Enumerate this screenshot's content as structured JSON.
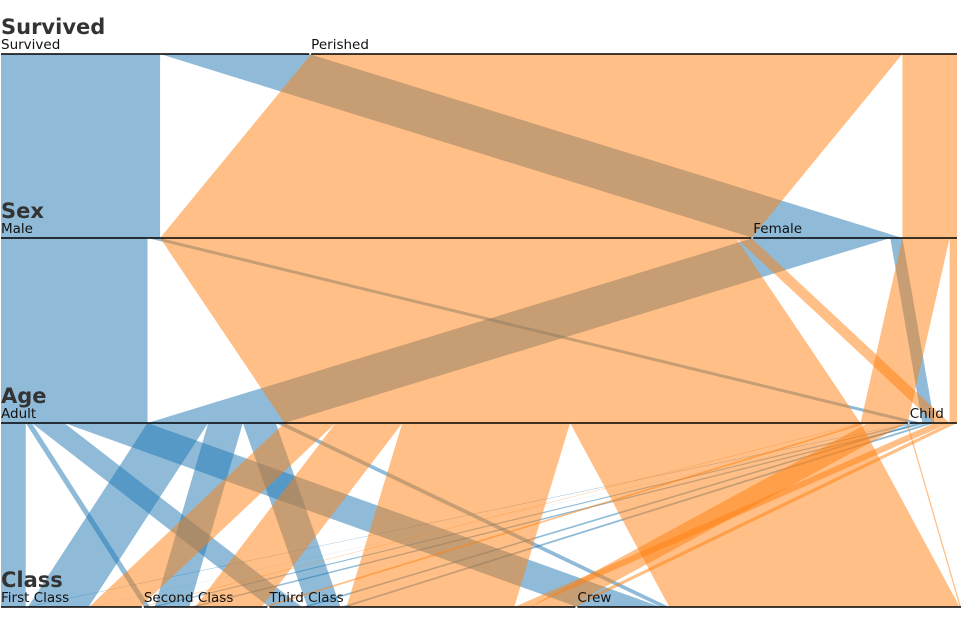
{
  "chart_data": {
    "type": "parallel-sets",
    "dimensions": [
      {
        "name": "Survived",
        "categories": [
          "Survived",
          "Perished"
        ]
      },
      {
        "name": "Sex",
        "categories": [
          "Male",
          "Female"
        ]
      },
      {
        "name": "Age",
        "categories": [
          "Adult",
          "Child"
        ]
      },
      {
        "name": "Class",
        "categories": [
          "First Class",
          "Second Class",
          "Third Class",
          "Crew"
        ]
      }
    ],
    "colors": {
      "Survived": "#1f77b4",
      "Perished": "#ff7f0e"
    },
    "ribbon_opacity": 0.5,
    "ribbon_color_by": "Survived",
    "counts": [
      {
        "Survived": "Survived",
        "Sex": "Male",
        "Age": "Adult",
        "Class": "First Class",
        "count": 57
      },
      {
        "Survived": "Survived",
        "Sex": "Male",
        "Age": "Adult",
        "Class": "Second Class",
        "count": 14
      },
      {
        "Survived": "Survived",
        "Sex": "Male",
        "Age": "Adult",
        "Class": "Third Class",
        "count": 75
      },
      {
        "Survived": "Survived",
        "Sex": "Male",
        "Age": "Adult",
        "Class": "Crew",
        "count": 192
      },
      {
        "Survived": "Survived",
        "Sex": "Male",
        "Age": "Child",
        "Class": "First Class",
        "count": 5
      },
      {
        "Survived": "Survived",
        "Sex": "Male",
        "Age": "Child",
        "Class": "Second Class",
        "count": 11
      },
      {
        "Survived": "Survived",
        "Sex": "Male",
        "Age": "Child",
        "Class": "Third Class",
        "count": 13
      },
      {
        "Survived": "Survived",
        "Sex": "Male",
        "Age": "Child",
        "Class": "Crew",
        "count": 0
      },
      {
        "Survived": "Survived",
        "Sex": "Female",
        "Age": "Adult",
        "Class": "First Class",
        "count": 140
      },
      {
        "Survived": "Survived",
        "Sex": "Female",
        "Age": "Adult",
        "Class": "Second Class",
        "count": 80
      },
      {
        "Survived": "Survived",
        "Sex": "Female",
        "Age": "Adult",
        "Class": "Third Class",
        "count": 76
      },
      {
        "Survived": "Survived",
        "Sex": "Female",
        "Age": "Adult",
        "Class": "Crew",
        "count": 20
      },
      {
        "Survived": "Survived",
        "Sex": "Female",
        "Age": "Child",
        "Class": "First Class",
        "count": 1
      },
      {
        "Survived": "Survived",
        "Sex": "Female",
        "Age": "Child",
        "Class": "Second Class",
        "count": 13
      },
      {
        "Survived": "Survived",
        "Sex": "Female",
        "Age": "Child",
        "Class": "Third Class",
        "count": 14
      },
      {
        "Survived": "Survived",
        "Sex": "Female",
        "Age": "Child",
        "Class": "Crew",
        "count": 0
      },
      {
        "Survived": "Perished",
        "Sex": "Male",
        "Age": "Adult",
        "Class": "First Class",
        "count": 118
      },
      {
        "Survived": "Perished",
        "Sex": "Male",
        "Age": "Adult",
        "Class": "Second Class",
        "count": 154
      },
      {
        "Survived": "Perished",
        "Sex": "Male",
        "Age": "Adult",
        "Class": "Third Class",
        "count": 387
      },
      {
        "Survived": "Perished",
        "Sex": "Male",
        "Age": "Adult",
        "Class": "Crew",
        "count": 670
      },
      {
        "Survived": "Perished",
        "Sex": "Male",
        "Age": "Child",
        "Class": "First Class",
        "count": 0
      },
      {
        "Survived": "Perished",
        "Sex": "Male",
        "Age": "Child",
        "Class": "Second Class",
        "count": 0
      },
      {
        "Survived": "Perished",
        "Sex": "Male",
        "Age": "Child",
        "Class": "Third Class",
        "count": 35
      },
      {
        "Survived": "Perished",
        "Sex": "Male",
        "Age": "Child",
        "Class": "Crew",
        "count": 0
      },
      {
        "Survived": "Perished",
        "Sex": "Female",
        "Age": "Adult",
        "Class": "First Class",
        "count": 4
      },
      {
        "Survived": "Perished",
        "Sex": "Female",
        "Age": "Adult",
        "Class": "Second Class",
        "count": 13
      },
      {
        "Survived": "Perished",
        "Sex": "Female",
        "Age": "Adult",
        "Class": "Third Class",
        "count": 89
      },
      {
        "Survived": "Perished",
        "Sex": "Female",
        "Age": "Adult",
        "Class": "Crew",
        "count": 3
      },
      {
        "Survived": "Perished",
        "Sex": "Female",
        "Age": "Child",
        "Class": "First Class",
        "count": 0
      },
      {
        "Survived": "Perished",
        "Sex": "Female",
        "Age": "Child",
        "Class": "Second Class",
        "count": 0
      },
      {
        "Survived": "Perished",
        "Sex": "Female",
        "Age": "Child",
        "Class": "Third Class",
        "count": 17
      },
      {
        "Survived": "Perished",
        "Sex": "Female",
        "Age": "Child",
        "Class": "Crew",
        "count": 0
      }
    ]
  }
}
